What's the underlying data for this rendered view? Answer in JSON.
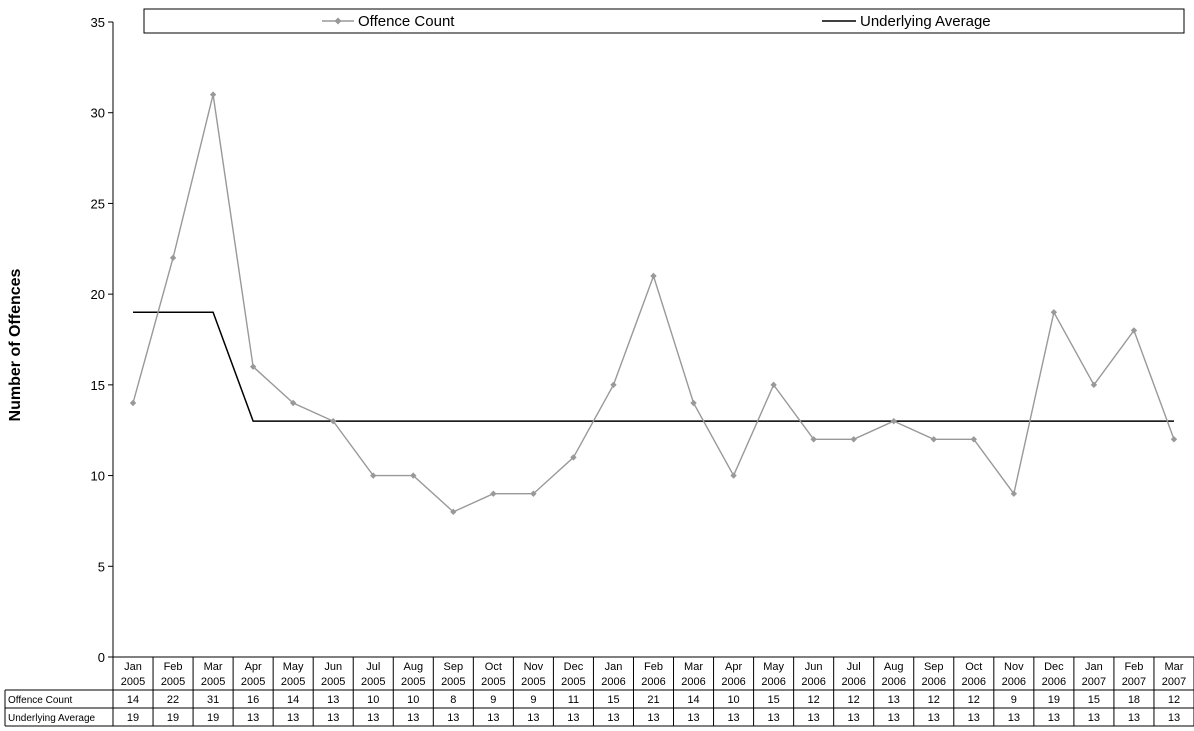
{
  "chart_data": {
    "type": "line",
    "ylabel": "Number of Offences",
    "ylim": [
      0,
      35
    ],
    "yticks": [
      0,
      5,
      10,
      15,
      20,
      25,
      30,
      35
    ],
    "legend_position": "top",
    "grid": false,
    "categories": [
      [
        "Jan",
        "2005"
      ],
      [
        "Feb",
        "2005"
      ],
      [
        "Mar",
        "2005"
      ],
      [
        "Apr",
        "2005"
      ],
      [
        "May",
        "2005"
      ],
      [
        "Jun",
        "2005"
      ],
      [
        "Jul",
        "2005"
      ],
      [
        "Aug",
        "2005"
      ],
      [
        "Sep",
        "2005"
      ],
      [
        "Oct",
        "2005"
      ],
      [
        "Nov",
        "2005"
      ],
      [
        "Dec",
        "2005"
      ],
      [
        "Jan",
        "2006"
      ],
      [
        "Feb",
        "2006"
      ],
      [
        "Mar",
        "2006"
      ],
      [
        "Apr",
        "2006"
      ],
      [
        "May",
        "2006"
      ],
      [
        "Jun",
        "2006"
      ],
      [
        "Jul",
        "2006"
      ],
      [
        "Aug",
        "2006"
      ],
      [
        "Sep",
        "2006"
      ],
      [
        "Oct",
        "2006"
      ],
      [
        "Nov",
        "2006"
      ],
      [
        "Dec",
        "2006"
      ],
      [
        "Jan",
        "2007"
      ],
      [
        "Feb",
        "2007"
      ],
      [
        "Mar",
        "2007"
      ]
    ],
    "series": [
      {
        "name": "Offence Count",
        "color": "#999999",
        "marker": "diamond",
        "values": [
          14,
          22,
          31,
          16,
          14,
          13,
          10,
          10,
          8,
          9,
          9,
          11,
          15,
          21,
          14,
          10,
          15,
          12,
          12,
          13,
          12,
          12,
          9,
          19,
          15,
          18,
          12
        ]
      },
      {
        "name": "Underlying Average",
        "color": "#000000",
        "marker": "none",
        "values": [
          19,
          19,
          19,
          13,
          13,
          13,
          13,
          13,
          13,
          13,
          13,
          13,
          13,
          13,
          13,
          13,
          13,
          13,
          13,
          13,
          13,
          13,
          13,
          13,
          13,
          13,
          13
        ]
      }
    ]
  }
}
